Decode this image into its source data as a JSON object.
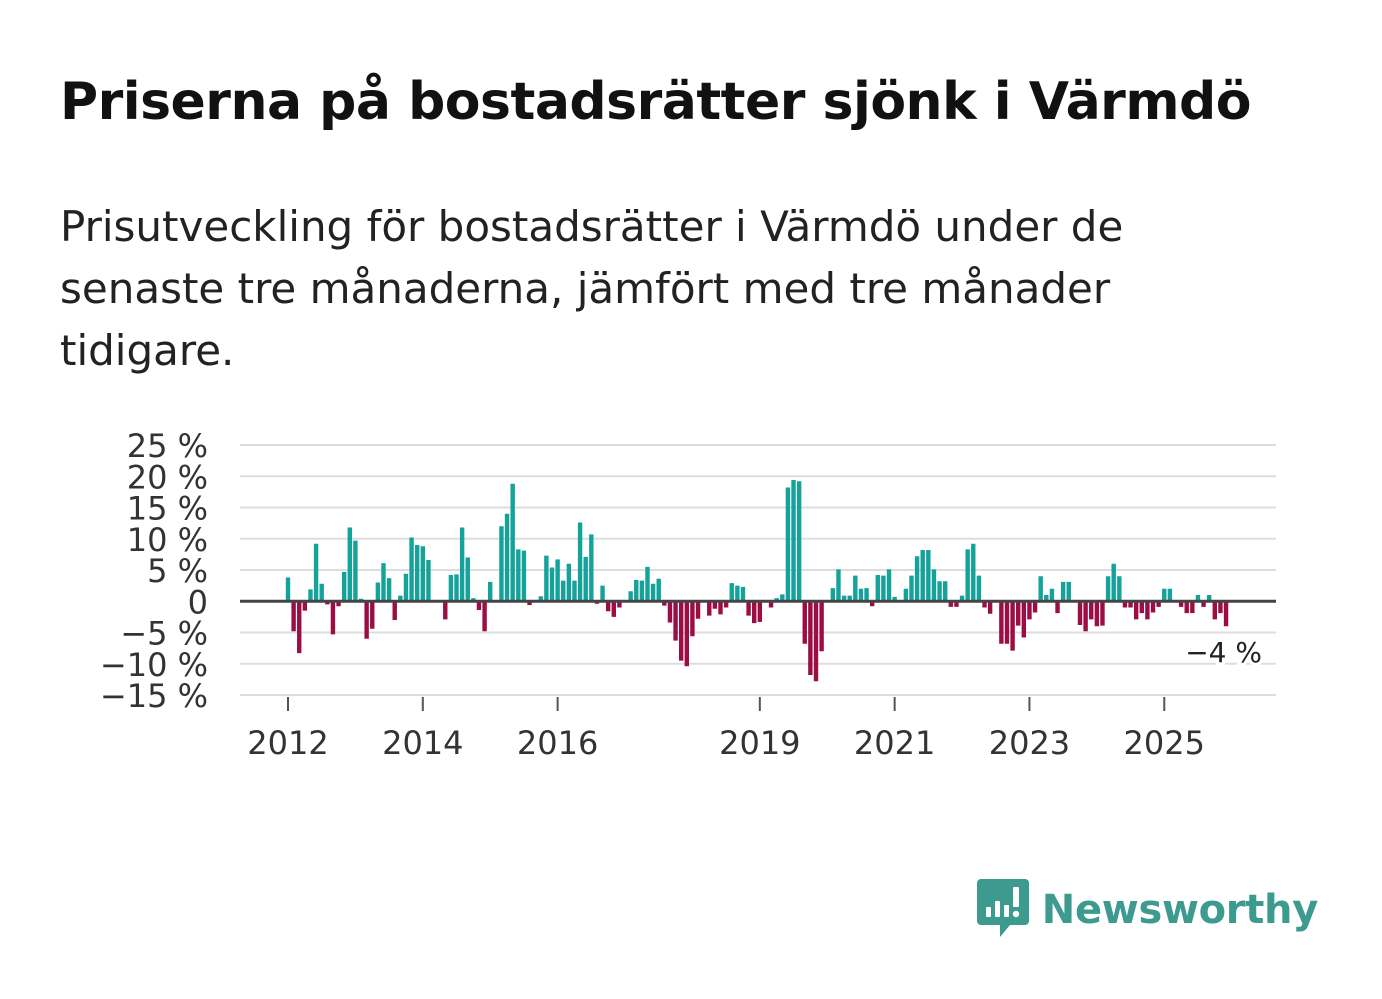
{
  "header": {
    "title": "Priserna på bostadsrätter sjönk i Värmdö",
    "subtitle": "Prisutveckling för bostadsrätter i Värmdö under de senaste tre månaderna, jämfört med tre månader tidigare."
  },
  "brand": {
    "name": "Newsworthy",
    "color": "#3d9a8f",
    "icon": "newsworthy-logo-icon"
  },
  "colors": {
    "positive": "#14a29a",
    "negative": "#9b0d44",
    "grid": "#dddddd",
    "zero_line": "#444444",
    "text": "#333333"
  },
  "chart_data": {
    "type": "bar",
    "title": "Priserna på bostadsrätter sjönk i Värmdö",
    "xlabel": "",
    "ylabel": "",
    "ylim": [
      -15,
      25
    ],
    "y_ticks": [
      25,
      20,
      15,
      10,
      5,
      0,
      -5,
      -10,
      -15
    ],
    "y_tick_labels": [
      "25 %",
      "20 %",
      "15 %",
      "10 %",
      "5 %",
      "0",
      "−5 %",
      "−10 %",
      "−15 %"
    ],
    "x_ticks": [
      {
        "label": "2012",
        "index": 0
      },
      {
        "label": "2014",
        "index": 24
      },
      {
        "label": "2016",
        "index": 48
      },
      {
        "label": "2019",
        "index": 84
      },
      {
        "label": "2021",
        "index": 108
      },
      {
        "label": "2023",
        "index": 132
      },
      {
        "label": "2025",
        "index": 156
      }
    ],
    "start": "2012-01",
    "end_label": "−4 %",
    "values": [
      3.8,
      -4.8,
      -8.3,
      -1.5,
      1.9,
      9.2,
      2.8,
      -0.5,
      -5.3,
      -0.8,
      4.7,
      11.8,
      9.7,
      0.4,
      -6.0,
      -4.4,
      3.0,
      6.1,
      3.7,
      -3.0,
      0.9,
      4.4,
      10.2,
      9.0,
      8.8,
      6.6,
      0.0,
      0.0,
      -2.9,
      4.2,
      4.3,
      11.8,
      7.0,
      0.5,
      -1.4,
      -4.8,
      3.1,
      0.0,
      12.0,
      14.0,
      18.8,
      8.3,
      8.1,
      -0.6,
      0.1,
      0.8,
      7.3,
      5.4,
      6.7,
      3.3,
      6.0,
      3.3,
      12.6,
      7.1,
      10.7,
      -0.4,
      2.5,
      -1.6,
      -2.5,
      -1.0,
      0.1,
      1.6,
      3.4,
      3.3,
      5.5,
      2.8,
      3.6,
      -0.7,
      -3.4,
      -6.3,
      -9.5,
      -10.4,
      -5.6,
      -2.8,
      0.0,
      -2.3,
      -1.2,
      -2.1,
      -1.0,
      2.9,
      2.5,
      2.3,
      -2.3,
      -3.5,
      -3.3,
      0.0,
      -1.0,
      0.5,
      1.1,
      18.2,
      19.4,
      19.2,
      -6.8,
      -11.8,
      -12.8,
      -8.0,
      0.0,
      2.1,
      5.1,
      0.9,
      0.9,
      4.1,
      2.0,
      2.1,
      -0.8,
      4.2,
      4.1,
      5.1,
      0.7,
      0.0,
      2.0,
      4.1,
      7.2,
      8.2,
      8.2,
      5.1,
      3.2,
      3.2,
      -0.9,
      -0.9,
      0.9,
      8.3,
      9.2,
      4.1,
      -1.0,
      -2.0,
      0.0,
      -6.8,
      -6.8,
      -7.9,
      -3.9,
      -5.8,
      -2.9,
      -1.8,
      4.0,
      1.0,
      2.0,
      -1.9,
      3.1,
      3.1,
      0.0,
      -3.8,
      -4.8,
      -2.9,
      -4.0,
      -3.9,
      4.0,
      6.0,
      4.0,
      -1.0,
      -1.0,
      -2.9,
      -1.9,
      -2.9,
      -1.8,
      -0.9,
      2.0,
      2.0,
      0.0,
      -0.9,
      -1.9,
      -1.9,
      1.0,
      -0.9,
      1.0,
      -2.9,
      -1.9,
      -4.0
    ]
  }
}
